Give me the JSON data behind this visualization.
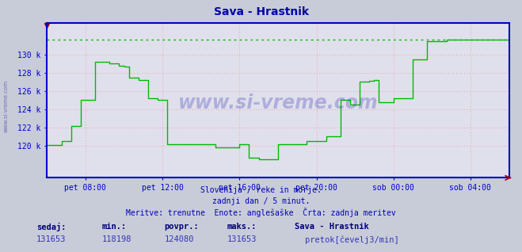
{
  "title": "Sava - Hrastnik",
  "title_color": "#0000aa",
  "bg_color": "#c8ccd8",
  "plot_bg_color": "#e0e0ec",
  "grid_color": "#ee8888",
  "line_color": "#00bb00",
  "axis_color": "#0000cc",
  "spine_color": "#0000cc",
  "x_tick_labels": [
    "pet 08:00",
    "pet 12:00",
    "pet 16:00",
    "pet 20:00",
    "sob 00:00",
    "sob 04:00"
  ],
  "y_ticks": [
    120000,
    122000,
    124000,
    126000,
    128000,
    130000
  ],
  "y_tick_labels": [
    "120 k",
    "122 k",
    "124 k",
    "126 k",
    "128 k",
    "130 k"
  ],
  "ylim_min": 116500,
  "ylim_max": 133500,
  "xlim_min": 0,
  "xlim_max": 288,
  "max_line_y": 131653,
  "footer_line1": "Slovenija / reke in morje.",
  "footer_line2": "zadnji dan / 5 minut.",
  "footer_line3": "Meritve: trenutne  Enote: anglešaške  Črta: zadnja meritev",
  "footer_color": "#0000bb",
  "stats_labels": [
    "sedaj:",
    "min.:",
    "povpr.:",
    "maks.:"
  ],
  "stats_values": [
    "131653",
    "118198",
    "124080",
    "131653"
  ],
  "legend_label": "pretok[čevelj3/min]",
  "legend_station": "Sava - Hrastnik",
  "watermark": "www.si-vreme.com",
  "data_x": [
    0,
    3,
    6,
    9,
    12,
    15,
    18,
    21,
    24,
    27,
    30,
    33,
    36,
    39,
    42,
    45,
    48,
    51,
    54,
    57,
    60,
    63,
    66,
    69,
    72,
    75,
    78,
    81,
    84,
    87,
    90,
    93,
    96,
    99,
    102,
    105,
    108,
    111,
    114,
    117,
    120,
    123,
    126,
    129,
    132,
    135,
    138,
    141,
    144,
    147,
    150,
    153,
    156,
    159,
    162,
    165,
    168,
    171,
    174,
    177,
    180,
    183,
    186,
    189,
    192,
    195,
    198,
    201,
    204,
    207,
    210,
    213,
    216,
    219,
    222,
    225,
    228,
    231,
    234,
    237,
    240,
    243,
    246,
    249,
    252,
    255,
    258,
    261,
    264,
    267,
    270,
    273,
    276,
    279,
    282,
    285,
    288
  ],
  "data_y": [
    120100,
    120100,
    120100,
    120500,
    120500,
    122200,
    122200,
    125000,
    125000,
    125000,
    129200,
    129200,
    129200,
    129000,
    129000,
    128800,
    128700,
    127500,
    127500,
    127200,
    127200,
    125200,
    125200,
    125000,
    125000,
    120200,
    120200,
    120200,
    120200,
    120200,
    120200,
    120200,
    120200,
    120200,
    120200,
    119800,
    119800,
    119800,
    119800,
    119800,
    120200,
    120200,
    118700,
    118700,
    118500,
    118500,
    118500,
    118500,
    120200,
    120200,
    120200,
    120200,
    120200,
    120200,
    120500,
    120500,
    120500,
    120500,
    121000,
    121000,
    121000,
    125000,
    125000,
    124500,
    124500,
    127000,
    127000,
    127100,
    127200,
    124800,
    124800,
    124800,
    125200,
    125200,
    125200,
    125200,
    129500,
    129500,
    129500,
    131500,
    131500,
    131500,
    131500,
    131653,
    131653,
    131653,
    131653,
    131653,
    131653,
    131653,
    131653,
    131653,
    131653,
    131653,
    131653,
    131653,
    131653
  ]
}
